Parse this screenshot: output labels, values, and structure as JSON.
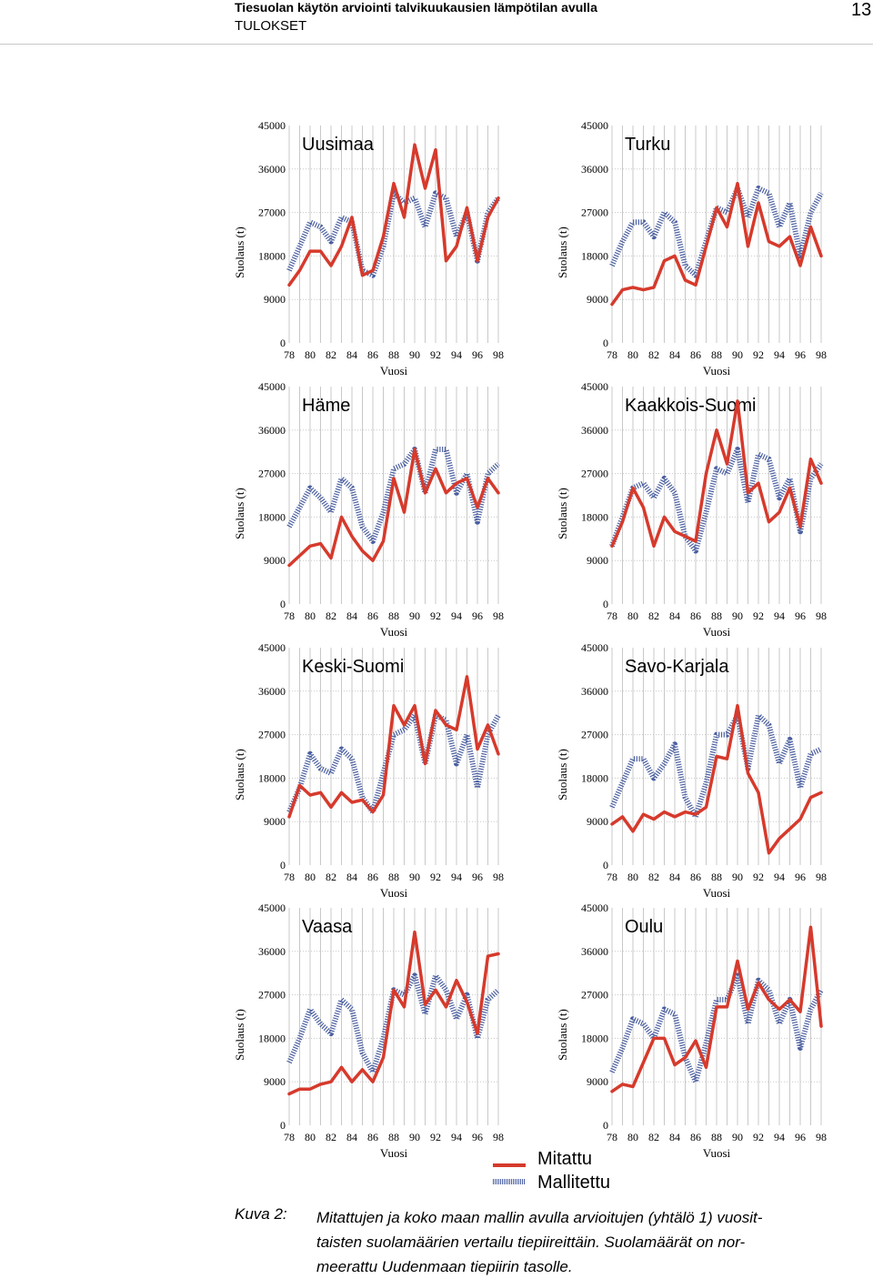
{
  "header": {
    "title": "Tiesuolan käytön arviointi talvikuukausien lämpötilan avulla",
    "subtitle": "TULOKSET",
    "page_number": "13"
  },
  "colors": {
    "measured": "#d63a2c",
    "modelled": "#4a5fa0",
    "grid": "#c8c8c8"
  },
  "legend": {
    "measured_label": "Mitattu",
    "modelled_label": "Mallitettu"
  },
  "caption": {
    "label": "Kuva 2:",
    "text": "Mitattujen ja koko maan mallin avulla arvioitujen (yhtälö 1) vuosit-\ntaisten suolamäärien vertailu tiepiireittäin. Suolamäärät on nor-\nmeerattu Uudenmaan tiepiirin tasolle."
  },
  "chart_data": [
    {
      "type": "line",
      "title": "Uusimaa",
      "xlabel": "Vuosi",
      "ylabel": "Suolaus (t)",
      "xlim": [
        78,
        98
      ],
      "ylim": [
        0,
        45000
      ],
      "x_ticks": [
        "78",
        "80",
        "82",
        "84",
        "86",
        "88",
        "90",
        "92",
        "94",
        "96",
        "98"
      ],
      "y_ticks": [
        "0",
        "9000",
        "18000",
        "27000",
        "36000",
        "45000"
      ],
      "grid": true,
      "x": [
        78,
        79,
        80,
        81,
        82,
        83,
        84,
        85,
        86,
        87,
        88,
        89,
        90,
        91,
        92,
        93,
        94,
        95,
        96,
        97,
        98
      ],
      "series": [
        {
          "name": "Mitattu",
          "values": [
            12000,
            15000,
            19000,
            19000,
            16000,
            20000,
            26000,
            14000,
            15000,
            22000,
            33000,
            26000,
            41000,
            32000,
            40000,
            17000,
            20000,
            28000,
            17000,
            26000,
            30000
          ]
        },
        {
          "name": "Mallitettu",
          "values": [
            15000,
            20000,
            25000,
            24000,
            21000,
            26000,
            25000,
            15000,
            14000,
            20000,
            31000,
            29000,
            30000,
            24000,
            31000,
            30000,
            22000,
            27000,
            17000,
            27000,
            30000
          ]
        }
      ]
    },
    {
      "type": "line",
      "title": "Turku",
      "xlabel": "Vuosi",
      "ylabel": "Suolaus (t)",
      "xlim": [
        78,
        98
      ],
      "ylim": [
        0,
        45000
      ],
      "x_ticks": [
        "78",
        "80",
        "82",
        "84",
        "86",
        "88",
        "90",
        "92",
        "94",
        "96",
        "98"
      ],
      "y_ticks": [
        "0",
        "9000",
        "18000",
        "27000",
        "36000",
        "45000"
      ],
      "grid": true,
      "x": [
        78,
        79,
        80,
        81,
        82,
        83,
        84,
        85,
        86,
        87,
        88,
        89,
        90,
        91,
        92,
        93,
        94,
        95,
        96,
        97,
        98
      ],
      "series": [
        {
          "name": "Mitattu",
          "values": [
            8000,
            11000,
            11500,
            11000,
            11500,
            17000,
            18000,
            13000,
            12000,
            20000,
            28000,
            24000,
            33000,
            20000,
            29000,
            21000,
            20000,
            22000,
            16000,
            24000,
            18000
          ]
        },
        {
          "name": "Mallitettu",
          "values": [
            16000,
            21000,
            25000,
            25000,
            22000,
            27000,
            25000,
            16000,
            14000,
            21000,
            28000,
            27000,
            32000,
            26000,
            32000,
            31000,
            24000,
            29000,
            18000,
            27000,
            31000
          ]
        }
      ]
    },
    {
      "type": "line",
      "title": "Häme",
      "xlabel": "Vuosi",
      "ylabel": "Suolaus (t)",
      "xlim": [
        78,
        98
      ],
      "ylim": [
        0,
        45000
      ],
      "x_ticks": [
        "78",
        "80",
        "82",
        "84",
        "86",
        "88",
        "90",
        "92",
        "94",
        "96",
        "98"
      ],
      "y_ticks": [
        "0",
        "9000",
        "18000",
        "27000",
        "36000",
        "45000"
      ],
      "grid": true,
      "x": [
        78,
        79,
        80,
        81,
        82,
        83,
        84,
        85,
        86,
        87,
        88,
        89,
        90,
        91,
        92,
        93,
        94,
        95,
        96,
        97,
        98
      ],
      "series": [
        {
          "name": "Mitattu",
          "values": [
            8000,
            10000,
            12000,
            12500,
            9500,
            18000,
            14000,
            11000,
            9000,
            13000,
            26000,
            19000,
            32000,
            23000,
            28000,
            23000,
            25000,
            26000,
            20000,
            26000,
            23000
          ]
        },
        {
          "name": "Mallitettu",
          "values": [
            16000,
            20000,
            24000,
            22000,
            19000,
            26000,
            24000,
            16000,
            13000,
            19000,
            28000,
            29000,
            32000,
            23000,
            32000,
            32000,
            23000,
            27000,
            17000,
            27000,
            29000
          ]
        }
      ]
    },
    {
      "type": "line",
      "title": "Kaakkois-Suomi",
      "xlabel": "Vuosi",
      "ylabel": "Suolaus (t)",
      "xlim": [
        78,
        98
      ],
      "ylim": [
        0,
        45000
      ],
      "x_ticks": [
        "78",
        "80",
        "82",
        "84",
        "86",
        "88",
        "90",
        "92",
        "94",
        "96",
        "98"
      ],
      "y_ticks": [
        "0",
        "9000",
        "18000",
        "27000",
        "36000",
        "45000"
      ],
      "grid": true,
      "x": [
        78,
        79,
        80,
        81,
        82,
        83,
        84,
        85,
        86,
        87,
        88,
        89,
        90,
        91,
        92,
        93,
        94,
        95,
        96,
        97,
        98
      ],
      "series": [
        {
          "name": "Mitattu",
          "values": [
            12000,
            17000,
            24000,
            20000,
            12000,
            18000,
            15000,
            14000,
            13000,
            27000,
            36000,
            29000,
            42000,
            23000,
            25000,
            17000,
            19000,
            24000,
            16000,
            30000,
            25000
          ]
        },
        {
          "name": "Mallitettu",
          "values": [
            12000,
            18000,
            24000,
            25000,
            22000,
            26000,
            23000,
            14000,
            11000,
            19000,
            28000,
            27000,
            32000,
            21000,
            31000,
            30000,
            22000,
            26000,
            15000,
            26000,
            29000
          ]
        }
      ]
    },
    {
      "type": "line",
      "title": "Keski-Suomi",
      "xlabel": "Vuosi",
      "ylabel": "Suolaus (t)",
      "xlim": [
        78,
        98
      ],
      "ylim": [
        0,
        45000
      ],
      "x_ticks": [
        "78",
        "80",
        "82",
        "84",
        "86",
        "88",
        "90",
        "92",
        "94",
        "96",
        "98"
      ],
      "y_ticks": [
        "0",
        "9000",
        "18000",
        "27000",
        "36000",
        "45000"
      ],
      "grid": true,
      "x": [
        78,
        79,
        80,
        81,
        82,
        83,
        84,
        85,
        86,
        87,
        88,
        89,
        90,
        91,
        92,
        93,
        94,
        95,
        96,
        97,
        98
      ],
      "series": [
        {
          "name": "Mitattu",
          "values": [
            10000,
            16500,
            14500,
            15000,
            12000,
            15000,
            13000,
            13500,
            11000,
            14500,
            33000,
            29000,
            33000,
            21000,
            32000,
            29000,
            28000,
            39000,
            24000,
            29000,
            23000
          ]
        },
        {
          "name": "Mallitettu",
          "values": [
            11000,
            16000,
            23000,
            20000,
            19000,
            24000,
            22000,
            14000,
            11000,
            19000,
            27000,
            28000,
            31000,
            21000,
            31000,
            30000,
            21000,
            27000,
            16000,
            27000,
            31000
          ]
        }
      ]
    },
    {
      "type": "line",
      "title": "Savo-Karjala",
      "xlabel": "Vuosi",
      "ylabel": "Suolaus (t)",
      "xlim": [
        78,
        98
      ],
      "ylim": [
        0,
        45000
      ],
      "x_ticks": [
        "78",
        "80",
        "82",
        "84",
        "86",
        "88",
        "90",
        "92",
        "94",
        "96",
        "98"
      ],
      "y_ticks": [
        "0",
        "9000",
        "18000",
        "27000",
        "36000",
        "45000"
      ],
      "grid": true,
      "x": [
        78,
        79,
        80,
        81,
        82,
        83,
        84,
        85,
        86,
        87,
        88,
        89,
        90,
        91,
        92,
        93,
        94,
        95,
        96,
        97,
        98
      ],
      "series": [
        {
          "name": "Mitattu",
          "values": [
            8500,
            10000,
            7000,
            10500,
            9500,
            11000,
            10000,
            11000,
            10500,
            12000,
            22500,
            22000,
            33000,
            19000,
            15000,
            2500,
            5500,
            7500,
            9500,
            14000,
            15000
          ]
        },
        {
          "name": "Mallitettu",
          "values": [
            12000,
            17000,
            22000,
            22000,
            18000,
            21000,
            25000,
            14000,
            10000,
            17000,
            27000,
            27000,
            31000,
            20000,
            31000,
            29000,
            21000,
            26000,
            16000,
            23000,
            24000
          ]
        }
      ]
    },
    {
      "type": "line",
      "title": "Vaasa",
      "xlabel": "Vuosi",
      "ylabel": "Suolaus (t)",
      "xlim": [
        78,
        98
      ],
      "ylim": [
        0,
        45000
      ],
      "x_ticks": [
        "78",
        "80",
        "82",
        "84",
        "86",
        "88",
        "90",
        "92",
        "94",
        "96",
        "98"
      ],
      "y_ticks": [
        "0",
        "9000",
        "18000",
        "27000",
        "36000",
        "45000"
      ],
      "grid": true,
      "x": [
        78,
        79,
        80,
        81,
        82,
        83,
        84,
        85,
        86,
        87,
        88,
        89,
        90,
        91,
        92,
        93,
        94,
        95,
        96,
        97,
        98
      ],
      "series": [
        {
          "name": "Mitattu",
          "values": [
            6500,
            7500,
            7500,
            8500,
            9000,
            12000,
            9000,
            11500,
            9000,
            14000,
            28000,
            24500,
            40000,
            25000,
            28000,
            24500,
            30000,
            25500,
            19000,
            35000,
            35500
          ]
        },
        {
          "name": "Mallitettu",
          "values": [
            13000,
            18000,
            24000,
            21000,
            19000,
            26000,
            24000,
            15000,
            11000,
            18000,
            28000,
            27000,
            31000,
            23000,
            31000,
            28000,
            22000,
            27000,
            18000,
            26000,
            28000
          ]
        }
      ]
    },
    {
      "type": "line",
      "title": "Oulu",
      "xlabel": "Vuosi",
      "ylabel": "Suolaus (t)",
      "xlim": [
        78,
        98
      ],
      "ylim": [
        0,
        45000
      ],
      "x_ticks": [
        "78",
        "80",
        "82",
        "84",
        "86",
        "88",
        "90",
        "92",
        "94",
        "96",
        "98"
      ],
      "y_ticks": [
        "0",
        "9000",
        "18000",
        "27000",
        "36000",
        "45000"
      ],
      "grid": true,
      "x": [
        78,
        79,
        80,
        81,
        82,
        83,
        84,
        85,
        86,
        87,
        88,
        89,
        90,
        91,
        92,
        93,
        94,
        95,
        96,
        97,
        98
      ],
      "series": [
        {
          "name": "Mitattu",
          "values": [
            7000,
            8500,
            8000,
            13000,
            18000,
            18000,
            12500,
            14000,
            17500,
            12000,
            24500,
            24500,
            34000,
            24000,
            29500,
            26000,
            24000,
            26000,
            23500,
            41000,
            20500
          ]
        },
        {
          "name": "Mallitettu",
          "values": [
            11000,
            16000,
            22000,
            21000,
            18000,
            24000,
            23000,
            14000,
            9000,
            17000,
            26000,
            26000,
            31000,
            21000,
            30000,
            28000,
            21000,
            26000,
            16000,
            24000,
            28000
          ]
        }
      ]
    }
  ]
}
